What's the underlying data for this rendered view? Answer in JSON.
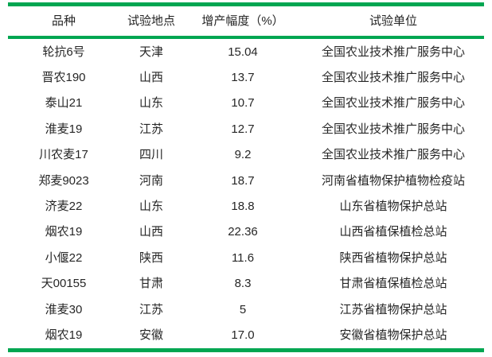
{
  "table": {
    "accent_color": "#00a651",
    "text_color": "#262626",
    "columns": [
      {
        "key": "variety",
        "label": "品种"
      },
      {
        "key": "location",
        "label": "试验地点"
      },
      {
        "key": "yield_increase_pct",
        "label": "增产幅度（%）"
      },
      {
        "key": "unit",
        "label": "试验单位"
      }
    ],
    "rows": [
      [
        "轮抗6号",
        "天津",
        "15.04",
        "全国农业技术推广服务中心"
      ],
      [
        "晋农190",
        "山西",
        "13.7",
        "全国农业技术推广服务中心"
      ],
      [
        "泰山21",
        "山东",
        "10.7",
        "全国农业技术推广服务中心"
      ],
      [
        "淮麦19",
        "江苏",
        "12.7",
        "全国农业技术推广服务中心"
      ],
      [
        "川农麦17",
        "四川",
        "9.2",
        "全国农业技术推广服务中心"
      ],
      [
        "郑麦9023",
        "河南",
        "18.7",
        "河南省植物保护植物检疫站"
      ],
      [
        "济麦22",
        "山东",
        "18.8",
        "山东省植物保护总站"
      ],
      [
        "烟农19",
        "山西",
        "22.36",
        "山西省植保植检总站"
      ],
      [
        "小偃22",
        "陕西",
        "11.6",
        "陕西省植物保护总站"
      ],
      [
        "天00155",
        "甘肃",
        "8.3",
        "甘肃省植保植检总站"
      ],
      [
        "淮麦30",
        "江苏",
        "5",
        "江苏省植物保护总站"
      ],
      [
        "烟农19",
        "安徽",
        "17.0",
        "安徽省植物保护总站"
      ]
    ]
  }
}
